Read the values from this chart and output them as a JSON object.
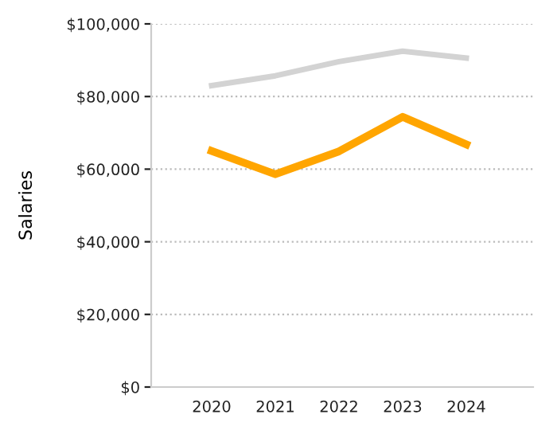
{
  "chart_data": {
    "type": "line",
    "ylabel": "Salaries",
    "x": [
      2020,
      2021,
      2022,
      2023,
      2024
    ],
    "series": [
      {
        "color": "#d3d3d3",
        "values": [
          83000,
          85700,
          89600,
          92500,
          90600
        ]
      },
      {
        "color": "#ffa500",
        "values": [
          65000,
          58600,
          64900,
          74400,
          66800
        ]
      }
    ],
    "xlim": [
      2019.05,
      2025.05
    ],
    "xticks": [
      2020,
      2021,
      2022,
      2023,
      2024
    ],
    "ylim": [
      0,
      100000
    ],
    "yticks": [
      {
        "value": 0,
        "label": "$0"
      },
      {
        "value": 20000,
        "label": "$20,000"
      },
      {
        "value": 40000,
        "label": "$40,000"
      },
      {
        "value": 60000,
        "label": "$60,000"
      },
      {
        "value": 80000,
        "label": "$80,000"
      },
      {
        "value": 100000,
        "label": "$100,000"
      }
    ],
    "grid": "y",
    "marker": "none",
    "line_style": "solid",
    "legend": false
  }
}
